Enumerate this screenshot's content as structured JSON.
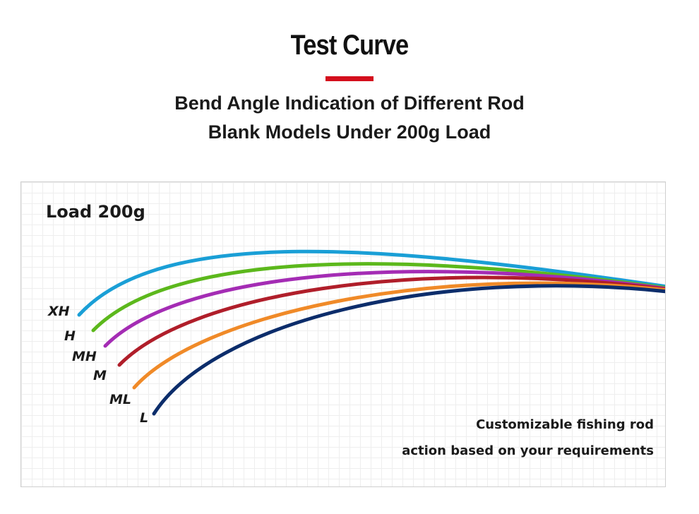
{
  "header": {
    "title": "Test Curve",
    "subtitle_line1": "Bend Angle Indication of Different Rod",
    "subtitle_line2": "Blank Models Under 200g Load",
    "accent_color": "#d40f1c"
  },
  "panel": {
    "load_label": "Load 200g",
    "note_line1": "Customizable fishing rod",
    "note_line2": "action based on your requirements"
  },
  "curves": [
    {
      "label": "XH",
      "color": "#1a9fd6"
    },
    {
      "label": "H",
      "color": "#5cb81c"
    },
    {
      "label": "MH",
      "color": "#a42cb4"
    },
    {
      "label": "M",
      "color": "#b01e2a"
    },
    {
      "label": "ML",
      "color": "#f08a28"
    },
    {
      "label": "L",
      "color": "#0c2d6b"
    }
  ]
}
